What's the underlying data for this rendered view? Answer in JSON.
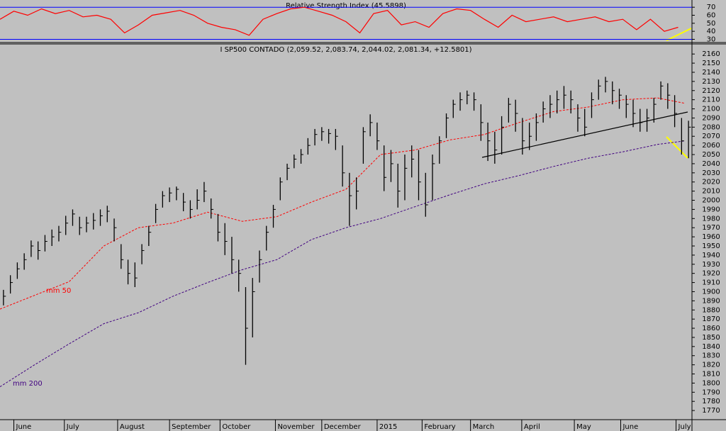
{
  "chart_data": [
    {
      "type": "line",
      "title": "Relative Strength Index (45.5898)",
      "x": [
        0,
        2,
        4,
        6,
        8,
        10,
        12,
        14,
        16,
        18,
        20,
        22,
        24,
        26,
        28,
        30,
        32,
        34,
        36,
        38,
        40,
        42,
        44,
        46,
        48,
        50,
        52,
        54,
        56,
        58,
        60,
        62,
        64,
        66,
        68,
        70,
        72,
        74,
        76,
        78,
        80,
        82,
        84,
        86,
        88,
        90,
        92,
        94,
        96,
        98
      ],
      "series": [
        {
          "color": "#ff0000",
          "values": [
            55,
            65,
            60,
            68,
            62,
            66,
            58,
            60,
            55,
            38,
            48,
            60,
            63,
            66,
            60,
            50,
            45,
            42,
            35,
            55,
            62,
            68,
            70,
            65,
            60,
            52,
            38,
            62,
            66,
            48,
            52,
            45,
            62,
            68,
            66,
            55,
            45,
            60,
            52,
            55,
            58,
            52,
            55,
            58,
            52,
            55,
            42,
            55,
            40,
            45
          ]
        }
      ],
      "levels": [
        70,
        30
      ],
      "level_color": "#0000ff",
      "xlim": [
        0,
        100
      ],
      "ylim": [
        26,
        79
      ],
      "yticks": [
        30,
        40,
        50,
        60,
        70
      ]
    },
    {
      "type": "ohlc",
      "title": "I SP500 CONTADO (2,059.52, 2,083.74, 2,044.02, 2,081.34, +12.5801)",
      "color": "#000000",
      "close": [
        1895,
        1910,
        1925,
        1935,
        1950,
        1945,
        1955,
        1960,
        1965,
        1975,
        1985,
        1970,
        1975,
        1978,
        1983,
        1988,
        1970,
        1935,
        1920,
        1915,
        1945,
        1965,
        1990,
        2005,
        2008,
        2012,
        1998,
        1990,
        2000,
        2010,
        1990,
        1965,
        1955,
        1935,
        1920,
        1860,
        1900,
        1935,
        1965,
        1990,
        2020,
        2035,
        2045,
        2050,
        2060,
        2072,
        2075,
        2073,
        2070,
        2030,
        2005,
        2010,
        2075,
        2085,
        2065,
        2025,
        2040,
        2010,
        2035,
        2045,
        2020,
        1995,
        2040,
        2065,
        2090,
        2105,
        2110,
        2115,
        2110,
        2085,
        2065,
        2055,
        2080,
        2105,
        2095,
        2065,
        2070,
        2085,
        2100,
        2105,
        2110,
        2115,
        2110,
        2090,
        2080,
        2110,
        2125,
        2130,
        2120,
        2115,
        2105,
        2095,
        2085,
        2090,
        2105,
        2125,
        2115,
        2095,
        2065,
        2080
      ],
      "high": [
        1902,
        1918,
        1932,
        1942,
        1956,
        1955,
        1962,
        1968,
        1972,
        1983,
        1990,
        1982,
        1982,
        1986,
        1990,
        1994,
        1980,
        1952,
        1935,
        1932,
        1952,
        1972,
        1996,
        2010,
        2014,
        2015,
        2008,
        2000,
        2012,
        2020,
        2002,
        1985,
        1975,
        1960,
        1935,
        1905,
        1915,
        1945,
        1972,
        1995,
        2025,
        2040,
        2050,
        2056,
        2068,
        2078,
        2080,
        2078,
        2078,
        2060,
        2030,
        2025,
        2080,
        2094,
        2085,
        2060,
        2055,
        2040,
        2050,
        2060,
        2055,
        2030,
        2050,
        2070,
        2095,
        2110,
        2118,
        2120,
        2118,
        2105,
        2085,
        2075,
        2092,
        2112,
        2110,
        2090,
        2085,
        2095,
        2108,
        2115,
        2120,
        2125,
        2120,
        2105,
        2100,
        2118,
        2132,
        2135,
        2130,
        2122,
        2115,
        2110,
        2100,
        2100,
        2112,
        2130,
        2128,
        2115,
        2090,
        2087
      ],
      "low": [
        1885,
        1898,
        1914,
        1924,
        1938,
        1935,
        1944,
        1950,
        1955,
        1962,
        1972,
        1962,
        1965,
        1968,
        1972,
        1976,
        1955,
        1925,
        1908,
        1905,
        1930,
        1950,
        1975,
        1992,
        1998,
        2000,
        1988,
        1980,
        1990,
        1998,
        1980,
        1955,
        1940,
        1920,
        1900,
        1820,
        1850,
        1910,
        1945,
        1970,
        2000,
        2022,
        2035,
        2040,
        2050,
        2060,
        2065,
        2062,
        2055,
        2015,
        1972,
        1990,
        2040,
        2070,
        2055,
        2010,
        2020,
        1992,
        2000,
        2025,
        2000,
        1982,
        2000,
        2040,
        2068,
        2090,
        2098,
        2105,
        2098,
        2065,
        2043,
        2040,
        2050,
        2085,
        2075,
        2050,
        2055,
        2065,
        2085,
        2090,
        2095,
        2100,
        2095,
        2075,
        2070,
        2090,
        2110,
        2118,
        2105,
        2100,
        2090,
        2080,
        2075,
        2075,
        2085,
        2110,
        2100,
        2080,
        2050,
        2046
      ],
      "moving_averages": [
        {
          "name": "mm 50",
          "color": "#ff0000",
          "x": [
            0,
            5,
            10,
            15,
            20,
            25,
            30,
            35,
            40,
            45,
            50,
            55,
            60,
            65,
            70,
            75,
            80,
            85,
            90,
            95,
            99
          ],
          "values": [
            1881,
            1896,
            1911,
            1950,
            1970,
            1975,
            1987,
            1977,
            1982,
            1998,
            2012,
            2050,
            2055,
            2066,
            2072,
            2085,
            2097,
            2102,
            2110,
            2112,
            2106
          ]
        },
        {
          "name": "mm 200",
          "color": "#400080",
          "x": [
            0,
            5,
            10,
            15,
            20,
            25,
            30,
            35,
            40,
            45,
            50,
            55,
            60,
            65,
            70,
            75,
            80,
            85,
            90,
            95,
            99
          ],
          "values": [
            1796,
            1820,
            1843,
            1865,
            1877,
            1895,
            1910,
            1924,
            1935,
            1957,
            1970,
            1980,
            1993,
            2006,
            2018,
            2027,
            2037,
            2046,
            2053,
            2061,
            2065
          ]
        }
      ],
      "xlim": [
        0,
        100
      ],
      "ylim": [
        1760,
        2171
      ],
      "yticks": [
        2160,
        2150,
        2140,
        2130,
        2120,
        2110,
        2100,
        2090,
        2080,
        2070,
        2060,
        2050,
        2040,
        2030,
        2020,
        2010,
        2000,
        1990,
        1980,
        1970,
        1960,
        1950,
        1940,
        1930,
        1920,
        1910,
        1900,
        1890,
        1880,
        1870,
        1860,
        1850,
        1840,
        1830,
        1820,
        1810,
        1800,
        1790,
        1780,
        1770
      ],
      "xticks": [
        {
          "value": 2,
          "label": "June"
        },
        {
          "value": 9.3,
          "label": "July"
        },
        {
          "value": 17,
          "label": "August"
        },
        {
          "value": 24.5,
          "label": "September"
        },
        {
          "value": 31.8,
          "label": "October"
        },
        {
          "value": 39.8,
          "label": "November"
        },
        {
          "value": 46.5,
          "label": "December"
        },
        {
          "value": 54.5,
          "label": "2015"
        },
        {
          "value": 61,
          "label": "February"
        },
        {
          "value": 68,
          "label": "March"
        },
        {
          "value": 75.4,
          "label": "April"
        },
        {
          "value": 83,
          "label": "May"
        },
        {
          "value": 89.7,
          "label": "June"
        },
        {
          "value": 97.7,
          "label": "July"
        }
      ]
    }
  ]
}
